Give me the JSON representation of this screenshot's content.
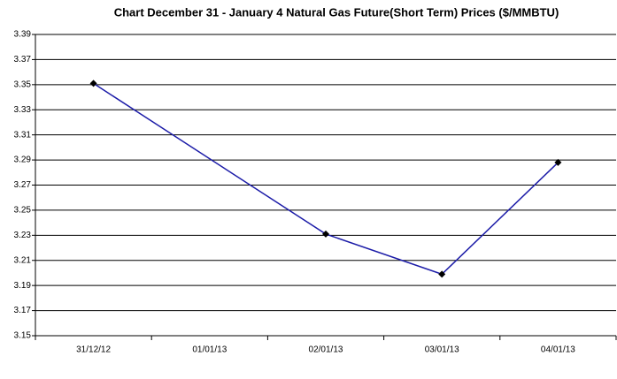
{
  "chart_data": {
    "type": "line",
    "title": "Chart December 31 - January 4   Natural Gas Future(Short Term)  Prices ($/MMBTU)",
    "categories": [
      "31/12/12",
      "01/01/13",
      "02/01/13",
      "03/01/13",
      "04/01/13"
    ],
    "series": [
      {
        "name": "Natural Gas Future",
        "color": "#1c1ca8",
        "values": [
          3.351,
          null,
          3.231,
          3.199,
          3.288
        ]
      }
    ],
    "ylim": [
      3.15,
      3.39
    ],
    "yticks": [
      3.15,
      3.17,
      3.19,
      3.21,
      3.23,
      3.25,
      3.27,
      3.29,
      3.31,
      3.33,
      3.35,
      3.37,
      3.39
    ],
    "grid": true
  }
}
